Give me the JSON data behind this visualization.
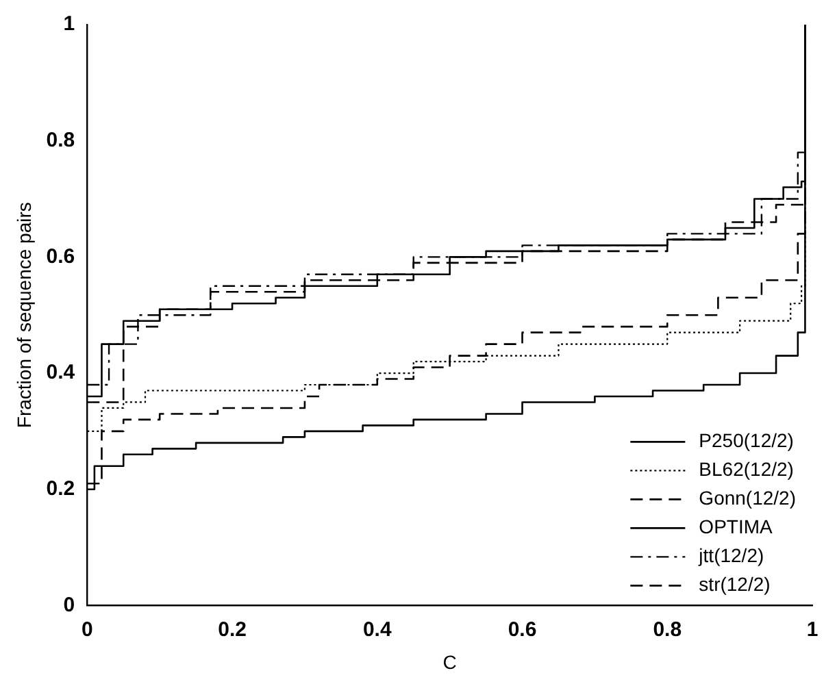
{
  "chart_data": {
    "type": "step",
    "xlabel": "C",
    "ylabel": "Fraction of sequence pairs",
    "xlim": [
      0,
      1
    ],
    "ylim": [
      0,
      1
    ],
    "xticks": [
      0,
      0.2,
      0.4,
      0.6,
      0.8,
      1
    ],
    "yticks": [
      0,
      0.2,
      0.4,
      0.6,
      0.8,
      1
    ],
    "grid": false,
    "legend": "bottom right",
    "marker": "none",
    "series": [
      {
        "name": "P250(12/2)",
        "color": "#000000",
        "line_style": "solid",
        "x": [
          0,
          0.02,
          0.05,
          0.1,
          0.2,
          0.26,
          0.3,
          0.4,
          0.5,
          0.55,
          0.65,
          0.8,
          0.88,
          0.92,
          0.96,
          0.985,
          0.99
        ],
        "values": [
          0.36,
          0.45,
          0.49,
          0.51,
          0.52,
          0.53,
          0.55,
          0.57,
          0.6,
          0.61,
          0.62,
          0.63,
          0.65,
          0.7,
          0.72,
          0.73,
          1
        ]
      },
      {
        "name": "BL62(12/2)",
        "color": "#000000",
        "line_style": "dotted",
        "x": [
          0,
          0.02,
          0.05,
          0.08,
          0.3,
          0.4,
          0.45,
          0.55,
          0.65,
          0.8,
          0.9,
          0.97,
          0.985,
          0.99
        ],
        "values": [
          0.3,
          0.34,
          0.35,
          0.37,
          0.38,
          0.4,
          0.42,
          0.43,
          0.45,
          0.47,
          0.49,
          0.52,
          0.55,
          1
        ]
      },
      {
        "name": "Gonn(12/2)",
        "color": "#000000",
        "line_style": "dashed",
        "x": [
          0,
          0.02,
          0.05,
          0.1,
          0.18,
          0.3,
          0.32,
          0.4,
          0.45,
          0.5,
          0.55,
          0.6,
          0.68,
          0.8,
          0.87,
          0.93,
          0.98,
          0.99
        ],
        "values": [
          0.21,
          0.3,
          0.32,
          0.33,
          0.34,
          0.36,
          0.38,
          0.39,
          0.41,
          0.43,
          0.45,
          0.47,
          0.48,
          0.5,
          0.53,
          0.56,
          0.64,
          1
        ]
      },
      {
        "name": "OPTIMA",
        "color": "#000000",
        "line_style": "solid",
        "x": [
          0,
          0.01,
          0.05,
          0.09,
          0.15,
          0.27,
          0.3,
          0.38,
          0.45,
          0.55,
          0.6,
          0.7,
          0.78,
          0.85,
          0.9,
          0.95,
          0.98,
          0.99
        ],
        "values": [
          0.2,
          0.24,
          0.26,
          0.27,
          0.28,
          0.29,
          0.3,
          0.31,
          0.32,
          0.33,
          0.35,
          0.36,
          0.37,
          0.38,
          0.4,
          0.43,
          0.47,
          1
        ]
      },
      {
        "name": "jtt(12/2)",
        "color": "#000000",
        "line_style": "dashdot",
        "x": [
          0,
          0.03,
          0.07,
          0.17,
          0.3,
          0.45,
          0.6,
          0.8,
          0.93,
          0.98,
          0.99
        ],
        "values": [
          0.38,
          0.45,
          0.5,
          0.55,
          0.57,
          0.6,
          0.62,
          0.64,
          0.7,
          0.78,
          1
        ]
      },
      {
        "name": "str(12/2)",
        "color": "#000000",
        "line_style": "dashed",
        "x": [
          0,
          0.05,
          0.1,
          0.17,
          0.3,
          0.45,
          0.6,
          0.8,
          0.88,
          0.95,
          0.99
        ],
        "values": [
          0.35,
          0.48,
          0.51,
          0.54,
          0.56,
          0.59,
          0.61,
          0.63,
          0.66,
          0.69,
          1
        ]
      }
    ]
  }
}
